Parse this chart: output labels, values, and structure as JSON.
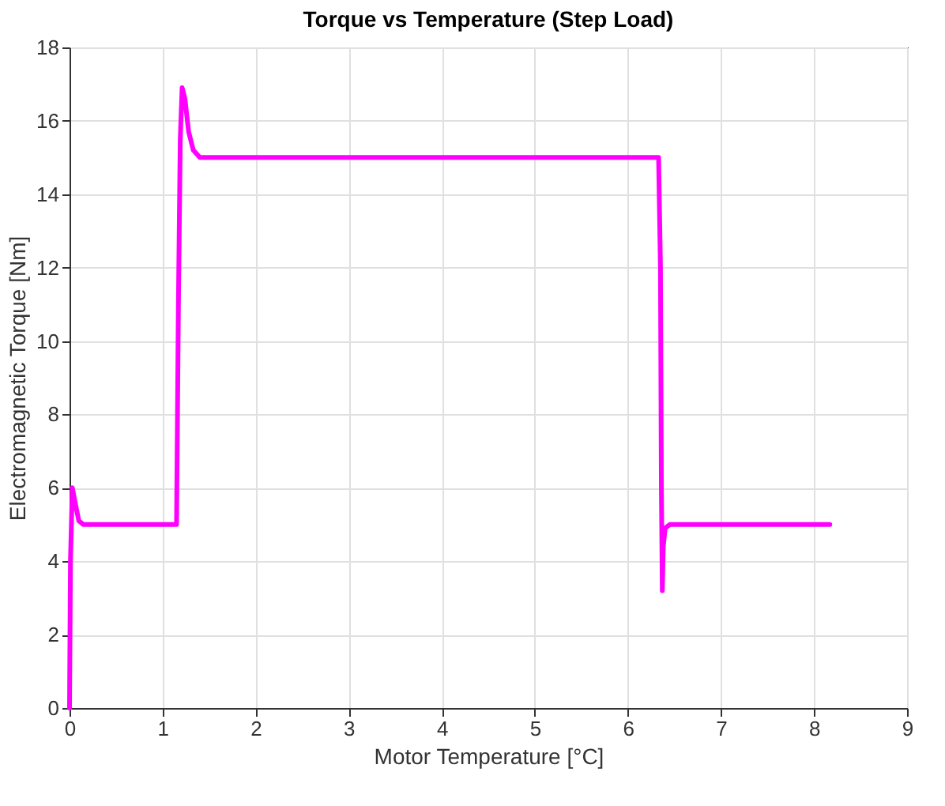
{
  "chart_data": {
    "type": "line",
    "title": "Torque vs Temperature (Step Load)",
    "xlabel": "Motor Temperature [°C]",
    "ylabel": "Electromagnetic Torque [Nm]",
    "x": [
      0,
      0.01,
      0.03,
      0.06,
      0.1,
      0.15,
      0.3,
      0.6,
      1.0,
      1.15,
      1.17,
      1.19,
      1.21,
      1.24,
      1.28,
      1.33,
      1.4,
      1.5,
      2,
      3,
      4,
      5,
      6,
      6.33,
      6.35,
      6.36,
      6.37,
      6.38,
      6.4,
      6.45,
      6.5,
      7,
      8,
      8.17
    ],
    "series": [
      {
        "color": "#ff00ff",
        "values": [
          0,
          4,
          6,
          5.6,
          5.1,
          5,
          5,
          5,
          5,
          5,
          11,
          15.5,
          16.9,
          16.6,
          15.7,
          15.2,
          15,
          15,
          15,
          15,
          15,
          15,
          15,
          15,
          12,
          6,
          3.2,
          4.4,
          4.9,
          5,
          5,
          5,
          5,
          5
        ]
      }
    ],
    "xlim": [
      0,
      9
    ],
    "xticks": [
      0,
      1,
      2,
      3,
      4,
      5,
      6,
      7,
      8,
      9
    ],
    "ylim": [
      0,
      18
    ],
    "yticks": [
      0,
      2,
      4,
      6,
      8,
      10,
      12,
      14,
      16,
      18
    ],
    "grid": true,
    "line_style": "solid",
    "marker": "none"
  }
}
